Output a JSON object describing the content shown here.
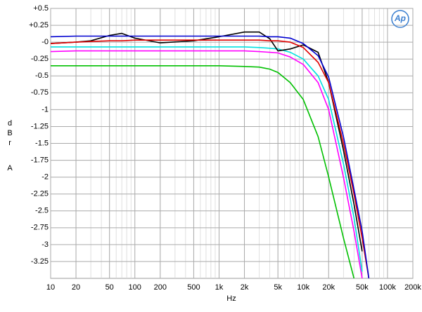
{
  "chart_data": {
    "type": "line",
    "logo": "Ap",
    "xlabel": "Hz",
    "ylabel": [
      "dBr",
      "A"
    ],
    "xscale": "log",
    "grid": true,
    "xlim": [
      10,
      200000
    ],
    "ylim": [
      -3.5,
      0.5
    ],
    "xticks": [
      10,
      20,
      50,
      100,
      200,
      500,
      {
        "value": 1000,
        "label": "1k"
      },
      {
        "value": 2000,
        "label": "2k"
      },
      {
        "value": 5000,
        "label": "5k"
      },
      {
        "value": 10000,
        "label": "10k"
      },
      {
        "value": 20000,
        "label": "20k"
      },
      {
        "value": 50000,
        "label": "50k"
      },
      {
        "value": 100000,
        "label": "100k"
      },
      {
        "value": 200000,
        "label": "200k"
      }
    ],
    "yticks": [
      {
        "value": 0.5,
        "label": "+0.5"
      },
      {
        "value": 0.25,
        "label": "+0.25"
      },
      {
        "value": 0,
        "label": "-0"
      },
      -0.25,
      -0.5,
      -0.75,
      -1,
      -1.25,
      -1.5,
      -1.75,
      -2,
      -2.25,
      -2.5,
      -2.75,
      -3,
      -3.25
    ],
    "x": [
      10,
      20,
      30,
      50,
      70,
      100,
      200,
      500,
      1000,
      2000,
      3000,
      4000,
      5000,
      7000,
      10000,
      15000,
      20000,
      30000,
      40000,
      50000,
      60000
    ],
    "series": [
      {
        "color": "#00c000",
        "values": [
          -0.35,
          -0.35,
          -0.35,
          -0.35,
          -0.35,
          -0.35,
          -0.35,
          -0.35,
          -0.35,
          -0.36,
          -0.37,
          -0.4,
          -0.45,
          -0.6,
          -0.85,
          -1.4,
          -2.0,
          -2.9,
          -3.5,
          null,
          null
        ]
      },
      {
        "color": "#ff00ff",
        "values": [
          -0.14,
          -0.13,
          -0.13,
          -0.13,
          -0.13,
          -0.13,
          -0.13,
          -0.13,
          -0.13,
          -0.13,
          -0.14,
          -0.15,
          -0.16,
          -0.22,
          -0.33,
          -0.6,
          -1.0,
          -2.0,
          -2.8,
          -3.5,
          null
        ]
      },
      {
        "color": "#00e0e0",
        "values": [
          -0.07,
          -0.07,
          -0.07,
          -0.07,
          -0.07,
          -0.07,
          -0.07,
          -0.07,
          -0.07,
          -0.07,
          -0.08,
          -0.09,
          -0.1,
          -0.15,
          -0.25,
          -0.5,
          -0.85,
          -1.8,
          -2.6,
          -3.4,
          null
        ]
      },
      {
        "color": "#000000",
        "values": [
          -0.02,
          0.0,
          0.02,
          0.1,
          0.13,
          0.06,
          -0.01,
          0.02,
          0.08,
          0.15,
          0.15,
          0.05,
          -0.13,
          -0.1,
          -0.04,
          -0.15,
          -0.6,
          -1.6,
          -2.4,
          -3.1,
          null
        ]
      },
      {
        "color": "#e00000",
        "values": [
          -0.02,
          0.0,
          0.01,
          0.02,
          0.02,
          0.03,
          0.03,
          0.03,
          0.03,
          0.03,
          0.03,
          0.02,
          0.02,
          0.0,
          -0.08,
          -0.3,
          -0.6,
          -1.5,
          -2.25,
          -2.9,
          -3.5
        ]
      },
      {
        "color": "#0000d0",
        "values": [
          0.08,
          0.09,
          0.09,
          0.09,
          0.09,
          0.09,
          0.09,
          0.09,
          0.09,
          0.09,
          0.09,
          0.08,
          0.08,
          0.06,
          -0.02,
          -0.2,
          -0.52,
          -1.4,
          -2.18,
          -2.8,
          -3.5
        ]
      }
    ]
  }
}
